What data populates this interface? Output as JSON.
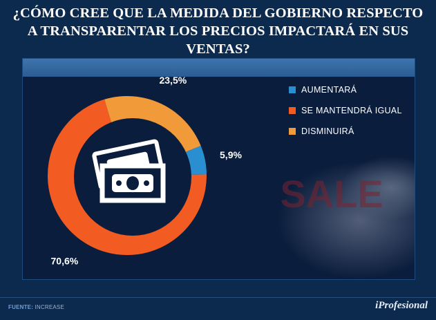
{
  "title_line1": "¿CÓMO CREE QUE LA MEDIDA DEL GOBIERNO RESPECTO",
  "title_line2": "A TRANSPARENTAR LOS PRECIOS IMPACTARÁ EN SUS VENTAS?",
  "background_text": "SALE",
  "icon": "money-bills-icon",
  "chart_data": {
    "type": "pie",
    "donut": true,
    "categories": [
      "AUMENTARÁ",
      "SE MANTENDRÁ IGUAL",
      "DISMINUIRÁ"
    ],
    "values": [
      5.9,
      70.6,
      23.5
    ],
    "labels": [
      "5,9%",
      "70,6%",
      "23,5%"
    ],
    "colors": [
      "#2a8fd0",
      "#f25c22",
      "#f09a3a"
    ],
    "legend_position": "top-right"
  },
  "footer": {
    "source_label": "FUENTE:",
    "source_value": " INCREASE",
    "brand": "iProfesional"
  }
}
